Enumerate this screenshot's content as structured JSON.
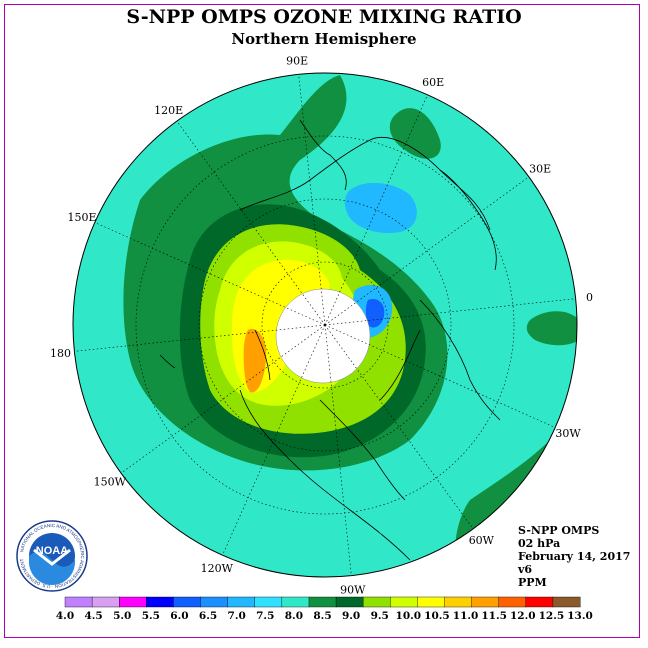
{
  "title": "S-NPP OMPS OZONE MIXING RATIO",
  "subtitle": "Northern Hemisphere",
  "longitude_labels": [
    {
      "text": "90E",
      "lon": 90
    },
    {
      "text": "60E",
      "lon": 60
    },
    {
      "text": "30E",
      "lon": 30
    },
    {
      "text": "0",
      "lon": 0
    },
    {
      "text": "30W",
      "lon": -30
    },
    {
      "text": "60W",
      "lon": -60
    },
    {
      "text": "90W",
      "lon": -90
    },
    {
      "text": "120W",
      "lon": -120
    },
    {
      "text": "150W",
      "lon": -150
    },
    {
      "text": "180",
      "lon": 180
    },
    {
      "text": "150E",
      "lon": 150
    },
    {
      "text": "120E",
      "lon": 120
    }
  ],
  "info": {
    "instrument": "S-NPP OMPS",
    "level": "02 hPa",
    "date": "February 14, 2017",
    "version": "v6",
    "units": "PPM"
  },
  "logo": {
    "text": "NOAA",
    "ring_text": "NATIONAL OCEANIC AND ATMOSPHERIC ADMINISTRATION · U.S. DEPARTMENT OF COMMERCE"
  },
  "colorbar": {
    "labels": [
      "4.0",
      "4.5",
      "5.0",
      "5.5",
      "6.0",
      "6.5",
      "7.0",
      "7.5",
      "8.0",
      "8.5",
      "9.0",
      "9.5",
      "10.0",
      "10.5",
      "11.0",
      "11.5",
      "12.0",
      "12.5",
      "13.0"
    ],
    "colors": [
      "#c080ff",
      "#d8a0f0",
      "#ff00ff",
      "#0000ff",
      "#1060ff",
      "#1890ff",
      "#20b8ff",
      "#30e0ff",
      "#30e8c8",
      "#109040",
      "#006828",
      "#90e000",
      "#d0ff00",
      "#ffff00",
      "#ffd000",
      "#ffa000",
      "#ff6000",
      "#ff0000",
      "#8b5a2b"
    ]
  },
  "map_colors": {
    "background": "#30e8c8",
    "dark_green": "#109040",
    "darker_green": "#006828",
    "light_green": "#90e000",
    "yellow_green": "#d0ff00",
    "yellow": "#ffff00",
    "orange": "#ffa000",
    "light_blue": "#20b8ff",
    "blue": "#1060ff",
    "no_data": "#ffffff"
  }
}
